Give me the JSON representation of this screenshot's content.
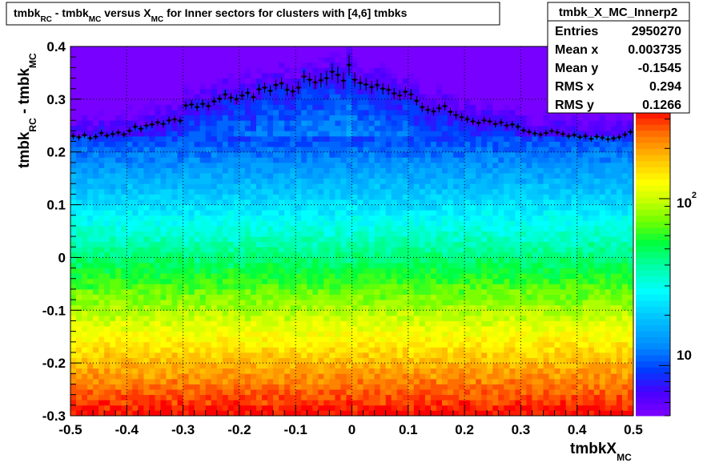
{
  "chart_data": {
    "type": "heatmap",
    "title": {
      "parts": [
        {
          "text": "tmbk",
          "sub": "RC"
        },
        {
          "text": " - tmbk",
          "sub": "MC"
        },
        {
          "text": " versus X",
          "sub": "MC"
        },
        {
          "text": " for Inner sectors for clusters with [4,6] tmbks",
          "sub": ""
        }
      ]
    },
    "xlabel": {
      "main": "tmbkX",
      "sub": "MC"
    },
    "ylabel": {
      "parts": [
        {
          "text": "tmbk",
          "sub": "RC"
        },
        {
          "text": " - tmbk",
          "sub": "MC"
        }
      ]
    },
    "xlim": [
      -0.5,
      0.5
    ],
    "ylim": [
      -0.3,
      0.4
    ],
    "x_ticks": [
      "-0.5",
      "-0.4",
      "-0.3",
      "-0.2",
      "-0.1",
      "0",
      "0.1",
      "0.2",
      "0.3",
      "0.4",
      "0.5"
    ],
    "y_ticks": [
      "-0.3",
      "-0.2",
      "-0.1",
      "0",
      "0.1",
      "0.2",
      "0.3",
      "0.4"
    ],
    "grid": true,
    "z_scale": "log",
    "z_range": [
      5,
      330
    ],
    "colorbar_labels": [
      {
        "base": "10",
        "exp": "",
        "value": 10
      },
      {
        "base": "10",
        "exp": "2",
        "value": 100
      }
    ],
    "profile": {
      "name": "profile",
      "x": [
        -0.495,
        -0.485,
        -0.475,
        -0.465,
        -0.455,
        -0.445,
        -0.435,
        -0.425,
        -0.415,
        -0.405,
        -0.395,
        -0.385,
        -0.375,
        -0.365,
        -0.355,
        -0.345,
        -0.335,
        -0.325,
        -0.315,
        -0.305,
        -0.295,
        -0.285,
        -0.275,
        -0.265,
        -0.255,
        -0.245,
        -0.235,
        -0.225,
        -0.215,
        -0.205,
        -0.195,
        -0.185,
        -0.175,
        -0.165,
        -0.155,
        -0.145,
        -0.135,
        -0.125,
        -0.115,
        -0.105,
        -0.095,
        -0.085,
        -0.075,
        -0.065,
        -0.055,
        -0.045,
        -0.035,
        -0.025,
        -0.015,
        -0.005,
        0.005,
        0.015,
        0.025,
        0.035,
        0.045,
        0.055,
        0.065,
        0.075,
        0.085,
        0.095,
        0.105,
        0.115,
        0.125,
        0.135,
        0.145,
        0.155,
        0.165,
        0.175,
        0.185,
        0.195,
        0.205,
        0.215,
        0.225,
        0.235,
        0.245,
        0.255,
        0.265,
        0.275,
        0.285,
        0.295,
        0.305,
        0.315,
        0.325,
        0.335,
        0.345,
        0.355,
        0.365,
        0.375,
        0.385,
        0.395,
        0.405,
        0.415,
        0.425,
        0.435,
        0.445,
        0.455,
        0.465,
        0.475,
        0.485,
        0.495
      ],
      "y": [
        0.23,
        0.228,
        0.232,
        0.226,
        0.229,
        0.236,
        0.231,
        0.234,
        0.237,
        0.233,
        0.24,
        0.248,
        0.244,
        0.25,
        0.252,
        0.256,
        0.253,
        0.26,
        0.262,
        0.259,
        0.288,
        0.29,
        0.285,
        0.291,
        0.287,
        0.296,
        0.301,
        0.309,
        0.303,
        0.3,
        0.307,
        0.312,
        0.304,
        0.319,
        0.322,
        0.316,
        0.327,
        0.33,
        0.318,
        0.315,
        0.322,
        0.343,
        0.337,
        0.332,
        0.336,
        0.34,
        0.352,
        0.346,
        0.335,
        0.365,
        0.337,
        0.331,
        0.328,
        0.323,
        0.327,
        0.32,
        0.318,
        0.311,
        0.307,
        0.314,
        0.309,
        0.297,
        0.285,
        0.28,
        0.277,
        0.283,
        0.287,
        0.276,
        0.27,
        0.266,
        0.262,
        0.258,
        0.255,
        0.26,
        0.258,
        0.253,
        0.256,
        0.25,
        0.252,
        0.248,
        0.241,
        0.238,
        0.235,
        0.233,
        0.236,
        0.24,
        0.237,
        0.234,
        0.23,
        0.232,
        0.228,
        0.23,
        0.225,
        0.229,
        0.227,
        0.224,
        0.226,
        0.228,
        0.233,
        0.238
      ],
      "yerr": [
        0.006,
        0.006,
        0.006,
        0.006,
        0.006,
        0.006,
        0.006,
        0.006,
        0.006,
        0.006,
        0.007,
        0.007,
        0.007,
        0.007,
        0.007,
        0.007,
        0.007,
        0.007,
        0.007,
        0.007,
        0.008,
        0.008,
        0.008,
        0.008,
        0.008,
        0.008,
        0.008,
        0.009,
        0.009,
        0.009,
        0.009,
        0.009,
        0.009,
        0.01,
        0.01,
        0.01,
        0.01,
        0.011,
        0.011,
        0.011,
        0.012,
        0.012,
        0.013,
        0.013,
        0.014,
        0.014,
        0.016,
        0.016,
        0.016,
        0.02,
        0.014,
        0.013,
        0.012,
        0.012,
        0.011,
        0.011,
        0.01,
        0.01,
        0.01,
        0.01,
        0.01,
        0.009,
        0.009,
        0.008,
        0.008,
        0.008,
        0.008,
        0.008,
        0.008,
        0.008,
        0.007,
        0.007,
        0.007,
        0.007,
        0.007,
        0.007,
        0.007,
        0.007,
        0.007,
        0.007,
        0.006,
        0.006,
        0.006,
        0.006,
        0.006,
        0.006,
        0.006,
        0.006,
        0.006,
        0.006,
        0.006,
        0.006,
        0.006,
        0.006,
        0.006,
        0.006,
        0.006,
        0.006,
        0.006,
        0.006
      ]
    }
  },
  "stats_box": {
    "title": "tmbk_X_MC_Innerp2",
    "rows": [
      {
        "label": "Entries",
        "value": "2950270"
      },
      {
        "label": "Mean x",
        "value": "0.003735"
      },
      {
        "label": "Mean y",
        "value": "-0.1545"
      },
      {
        "label": "RMS x",
        "value": "0.294"
      },
      {
        "label": "RMS y",
        "value": "0.1266"
      }
    ]
  }
}
